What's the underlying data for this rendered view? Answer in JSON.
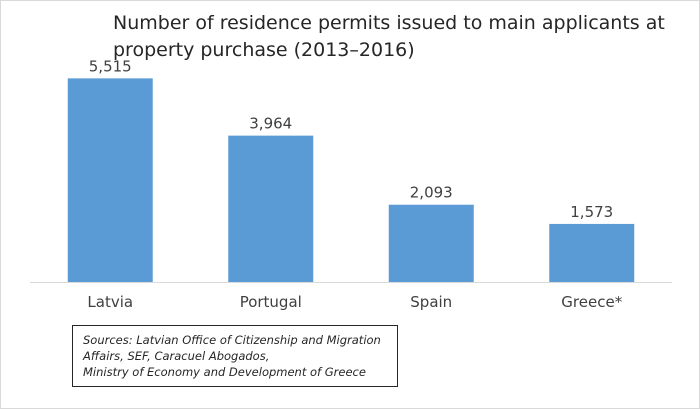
{
  "chart_data": {
    "type": "bar",
    "title": "Number of residence permits issued to main applicants at property purchase (2013–2016)",
    "title_lines": [
      "Number of residence permits issued to main applicants at",
      "property purchase (2013–2016)"
    ],
    "categories": [
      "Latvia",
      "Portugal",
      "Spain",
      "Greece*"
    ],
    "values": [
      5515,
      3964,
      2093,
      1573
    ],
    "value_labels": [
      "5,515",
      "3,964",
      "2,093",
      "1,573"
    ],
    "xlabel": "",
    "ylabel": "",
    "ylim": [
      0,
      6500
    ],
    "grid": false,
    "bar_color": "#5b9bd5",
    "axis_color": "#d9d9d9"
  },
  "sources": {
    "lines": [
      "Sources: Latvian Office of Citizenship and Migration",
      "Affairs, SEF, Caracuel Abogados,",
      "Ministry of Economy and Development of Greece"
    ]
  }
}
